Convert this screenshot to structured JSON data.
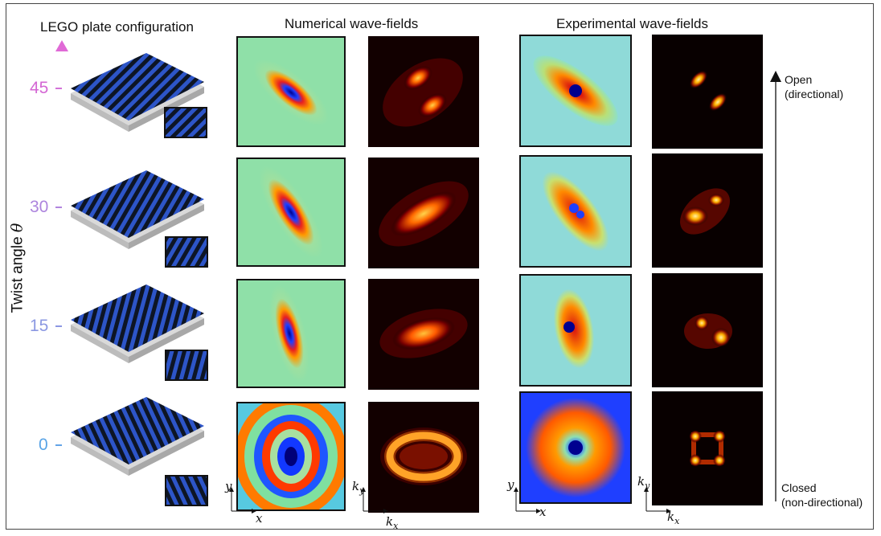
{
  "headings": {
    "lego": "LEGO plate configuration",
    "numerical": "Numerical wave-fields",
    "experimental": "Experimental wave-fields"
  },
  "axis": {
    "label_text": "Twist angle ",
    "label_symbol": "θ",
    "ticks": [
      "45",
      "30",
      "15",
      "0"
    ],
    "gradient_colors": [
      "#e06ad6",
      "#5da6e8"
    ]
  },
  "states": {
    "open_line1": "Open",
    "open_line2": "(directional)",
    "closed_line1": "Closed",
    "closed_line2": "(non-directional)"
  },
  "coords": {
    "x": "x",
    "y": "y",
    "kx_base": "k",
    "kx_sub": "x",
    "ky_base": "k",
    "ky_sub": "y"
  },
  "rows": [
    {
      "angle": 45
    },
    {
      "angle": 30
    },
    {
      "angle": 15
    },
    {
      "angle": 0
    }
  ],
  "colors": {
    "jet_background": "#8fe0a8",
    "plate_stripe_blue": "#2d55c8",
    "plate_stripe_dark": "#0d1525",
    "spectrum_bg": "#120000",
    "spectrum_glow": "#ffd24a"
  }
}
